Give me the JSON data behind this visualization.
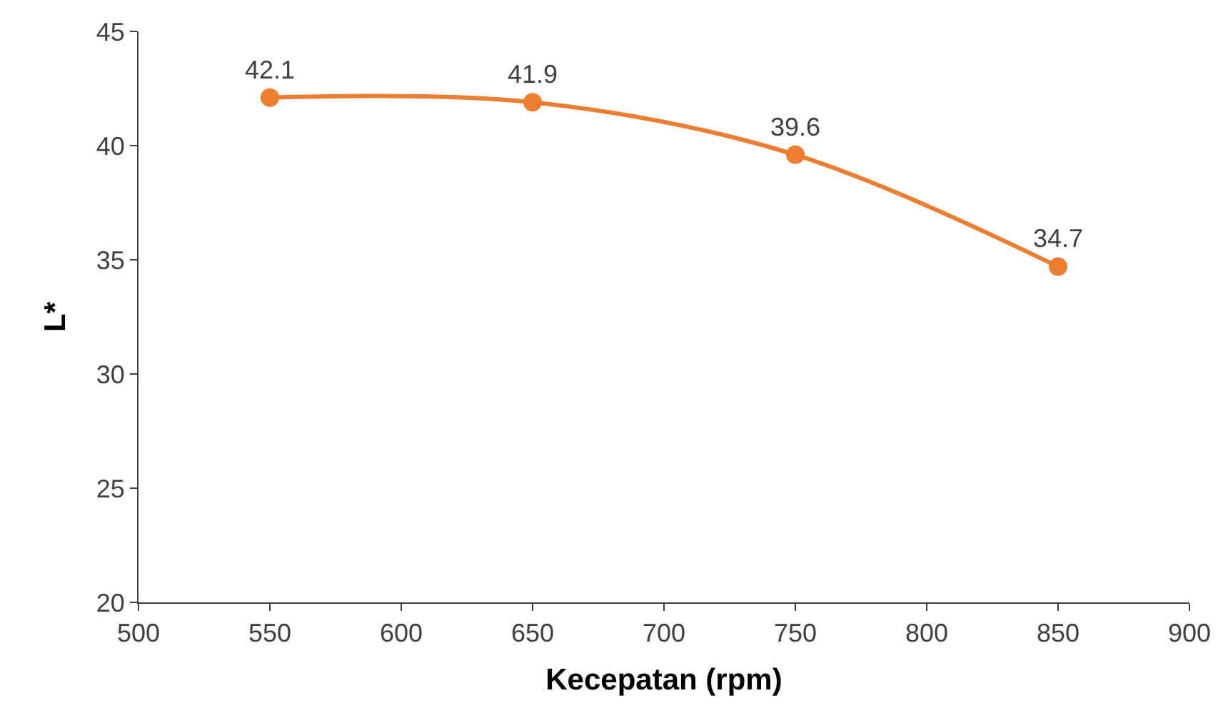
{
  "chart_data": {
    "type": "line",
    "xlabel": "Kecepatan (rpm)",
    "ylabel": "L*",
    "x": [
      550,
      650,
      750,
      850
    ],
    "series": [
      {
        "color": "#ed7d31",
        "values": [
          42.1,
          41.9,
          39.6,
          34.7
        ]
      }
    ],
    "xlim": [
      500,
      900
    ],
    "xticks": [
      500,
      550,
      600,
      650,
      700,
      750,
      800,
      850,
      900
    ],
    "ylim": [
      20,
      45
    ],
    "yticks": [
      20,
      25,
      30,
      35,
      40,
      45
    ],
    "marker": "circle",
    "line_style": "solid",
    "data_labels": true
  }
}
